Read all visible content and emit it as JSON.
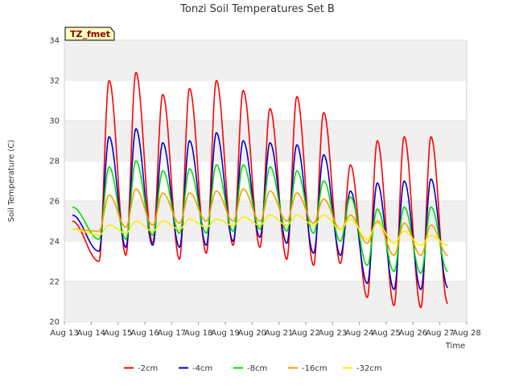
{
  "chart_data": {
    "type": "line",
    "title": "Tonzi Soil Temperatures Set B",
    "xlabel": "Time",
    "ylabel": "Soil Temperature (C)",
    "tag": "TZ_fmet",
    "xlim": [
      13,
      28
    ],
    "ylim": [
      20,
      34
    ],
    "x_ticks": [
      {
        "x": 13,
        "label": "Aug 13"
      },
      {
        "x": 14,
        "label": "Aug 14"
      },
      {
        "x": 15,
        "label": "Aug 15"
      },
      {
        "x": 16,
        "label": "Aug 16"
      },
      {
        "x": 17,
        "label": "Aug 17"
      },
      {
        "x": 18,
        "label": "Aug 18"
      },
      {
        "x": 19,
        "label": "Aug 19"
      },
      {
        "x": 20,
        "label": "Aug 20"
      },
      {
        "x": 21,
        "label": "Aug 21"
      },
      {
        "x": 22,
        "label": "Aug 22"
      },
      {
        "x": 23,
        "label": "Aug 23"
      },
      {
        "x": 24,
        "label": "Aug 24"
      },
      {
        "x": 25,
        "label": "Aug 25"
      },
      {
        "x": 26,
        "label": "Aug 26"
      },
      {
        "x": 27,
        "label": "Aug 27"
      },
      {
        "x": 28,
        "label": "Aug 28"
      }
    ],
    "y_ticks": [
      20,
      22,
      24,
      26,
      28,
      30,
      32,
      34
    ],
    "legend_position": "bottom",
    "grid": "alternating horizontal bands",
    "series": [
      {
        "name": "-2cm",
        "color": "#ff0000",
        "mins": [
          25.0,
          23.0,
          23.3,
          23.9,
          23.1,
          23.4,
          23.8,
          23.7,
          23.1,
          22.8,
          22.9,
          21.2,
          20.8,
          20.7,
          20.9,
          22.7
        ],
        "maxs": [
          32.0,
          32.4,
          31.3,
          31.6,
          32.0,
          31.5,
          30.6,
          31.2,
          30.4,
          27.8,
          29.0,
          29.2,
          29.2,
          28.6
        ]
      },
      {
        "name": "-4cm",
        "color": "#0000cc",
        "mins": [
          25.3,
          23.5,
          23.7,
          23.8,
          23.7,
          23.8,
          24.0,
          24.2,
          23.9,
          23.4,
          23.3,
          21.9,
          21.6,
          21.6,
          21.7,
          23.4
        ],
        "maxs": [
          29.2,
          29.6,
          28.9,
          29.0,
          29.4,
          29.0,
          28.9,
          28.8,
          28.3,
          26.5,
          26.9,
          27.0,
          27.1,
          26.7
        ]
      },
      {
        "name": "-8cm",
        "color": "#00dd00",
        "mins": [
          25.7,
          24.1,
          24.1,
          24.3,
          24.4,
          24.4,
          24.5,
          24.6,
          24.5,
          24.4,
          24.0,
          22.8,
          22.5,
          22.4,
          22.5,
          24.1
        ],
        "maxs": [
          27.7,
          28.0,
          27.5,
          27.6,
          27.8,
          27.8,
          27.7,
          27.5,
          27.0,
          26.2,
          25.6,
          25.7,
          25.7,
          25.5
        ]
      },
      {
        "name": "-16cm",
        "color": "#ff9900",
        "mins": [
          24.6,
          24.5,
          24.7,
          24.8,
          24.9,
          25.0,
          25.0,
          25.0,
          25.0,
          24.9,
          24.6,
          23.9,
          23.3,
          23.3,
          23.3,
          24.3
        ],
        "maxs": [
          26.3,
          26.6,
          26.4,
          26.4,
          26.5,
          26.6,
          26.5,
          26.4,
          26.1,
          25.3,
          25.0,
          24.9,
          24.8,
          24.7
        ]
      },
      {
        "name": "-32cm",
        "color": "#ffee00",
        "mins": [
          24.6,
          24.3,
          24.4,
          24.5,
          24.6,
          24.7,
          24.8,
          24.8,
          24.8,
          24.8,
          24.6,
          24.1,
          23.9,
          23.8,
          23.8,
          23.9
        ],
        "maxs": [
          24.8,
          25.0,
          25.0,
          25.1,
          25.1,
          25.2,
          25.3,
          25.3,
          25.3,
          25.1,
          24.9,
          24.5,
          24.3,
          24.2
        ]
      }
    ]
  }
}
